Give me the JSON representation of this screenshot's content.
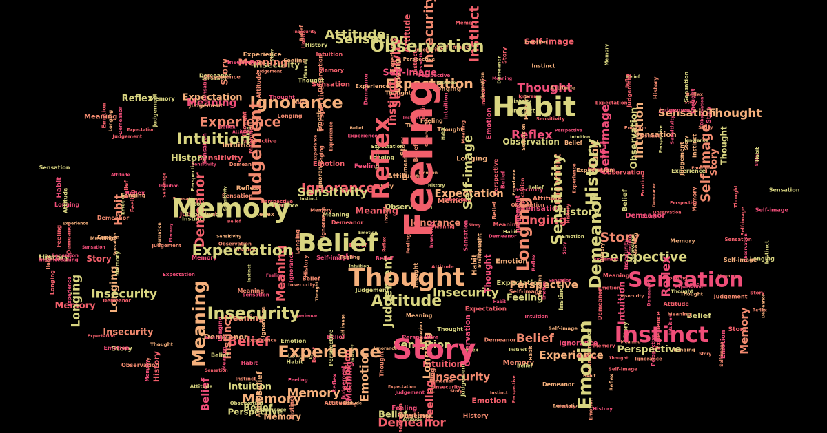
{
  "colors": {
    "background": "#000000",
    "palette": [
      "#f25f6b",
      "#f28a6f",
      "#f5b07c",
      "#d9d581",
      "#f04e79"
    ]
  },
  "words": [
    "Feeling",
    "Habit",
    "Belief",
    "Thought",
    "Memory",
    "Story",
    "Instinct",
    "Sensation",
    "Observation",
    "Reflex",
    "Ignorance",
    "Intuition",
    "Experience",
    "Insecurity",
    "Meaning",
    "Judgement",
    "Expectation",
    "Attitude",
    "Emotion",
    "Demeanor",
    "Longing",
    "Perspective",
    "Self-image",
    "Sensitivity",
    "History",
    "Observation",
    "Thought",
    "Habit",
    "Meaning",
    "Habit",
    "Memory",
    "History",
    "Instinct",
    "Emotion",
    "Attitude",
    "Judgement",
    "Ignorance",
    "Story",
    "Reflex",
    "Intuition",
    "Memory",
    "Feeling",
    "Expectation",
    "Belief",
    "Insecurity",
    "Meaning",
    "Sensation",
    "Experience",
    "Story",
    "Feeling",
    "Judgement",
    "Attitude",
    "Emotion",
    "Longing",
    "Sensitivity",
    "Perspective",
    "Insecurity",
    "Demeanor",
    "Self-image",
    "History",
    "Sensation",
    "Instinct",
    "Observation",
    "Longing",
    "Memory",
    "Story",
    "Habit",
    "Belief",
    "Judgement",
    "Thought",
    "Reflex",
    "Feeling",
    "Emotion",
    "Intuition",
    "Experience",
    "Sensitivity",
    "Meaning",
    "Demeanor",
    "Story",
    "Insecurity",
    "Attitude",
    "Expectation",
    "Belief",
    "Ignorance",
    "History",
    "Perspective",
    "Self-image",
    "Longing",
    "Instinct",
    "Sensation",
    "Observation",
    "Emotion",
    "Story",
    "Thought",
    "Habit",
    "Memory",
    "Reflex",
    "Judgement",
    "Intuition",
    "Feeling",
    "Belief",
    "Experience",
    "Meaning",
    "Insecurity",
    "Longing",
    "Demeanor",
    "Attitude",
    "Expectation",
    "Sensitivity",
    "Self-image",
    "Perspective",
    "History",
    "Story",
    "Emotion",
    "Sensation",
    "Instinct",
    "Ignorance",
    "Observation",
    "Habit",
    "Memory",
    "Belief",
    "Thought",
    "Feeling",
    "Judgement",
    "Reflex",
    "Longing",
    "Meaning",
    "Intuition",
    "Attitude",
    "Story",
    "Emotion",
    "Experience",
    "Insecurity",
    "Demeanor",
    "Sensation",
    "Belief",
    "Perspective",
    "History",
    "Sensitivity",
    "Expectation",
    "Self-image",
    "Instinct",
    "Habit",
    "Feeling",
    "Longing",
    "Memory",
    "Emotion",
    "Thought",
    "Story",
    "Observation",
    "Meaning",
    "Judgement",
    "Ignorance",
    "Belief",
    "Reflex",
    "Attitude",
    "Intuition",
    "Sensation",
    "Experience",
    "Longing",
    "Story",
    "Emotion",
    "Insecurity",
    "Self-image",
    "Demeanor",
    "History",
    "Habit",
    "Perspective",
    "Feeling",
    "Instinct",
    "Expectation",
    "Sensitivity",
    "Meaning",
    "Belief",
    "Memory",
    "Thought"
  ]
}
